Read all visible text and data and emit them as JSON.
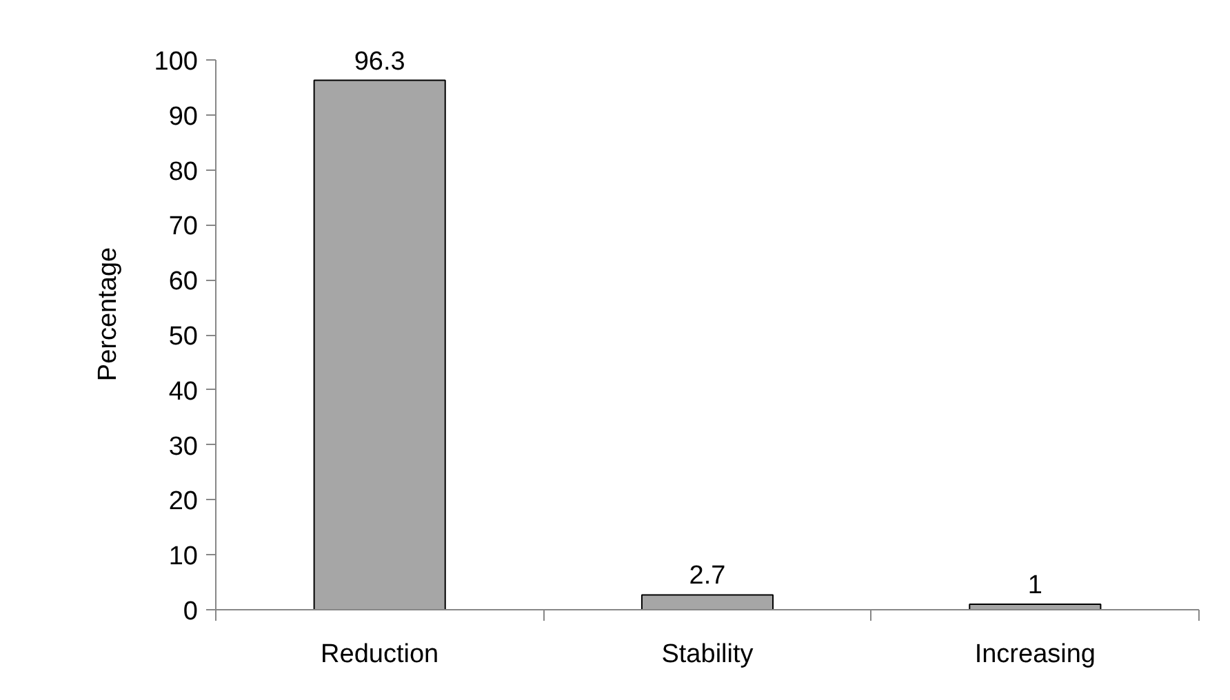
{
  "chart_data": {
    "type": "bar",
    "ylabel": "Percentage",
    "categories": [
      "Reduction",
      "Stability",
      "Increasing"
    ],
    "values": [
      96.3,
      2.7,
      1
    ],
    "color": "#a6a6a6",
    "ylim": [
      0,
      100
    ],
    "yticks": [
      0,
      10,
      20,
      30,
      40,
      50,
      60,
      70,
      80,
      90,
      100
    ],
    "data_labels": true,
    "grid": false
  }
}
